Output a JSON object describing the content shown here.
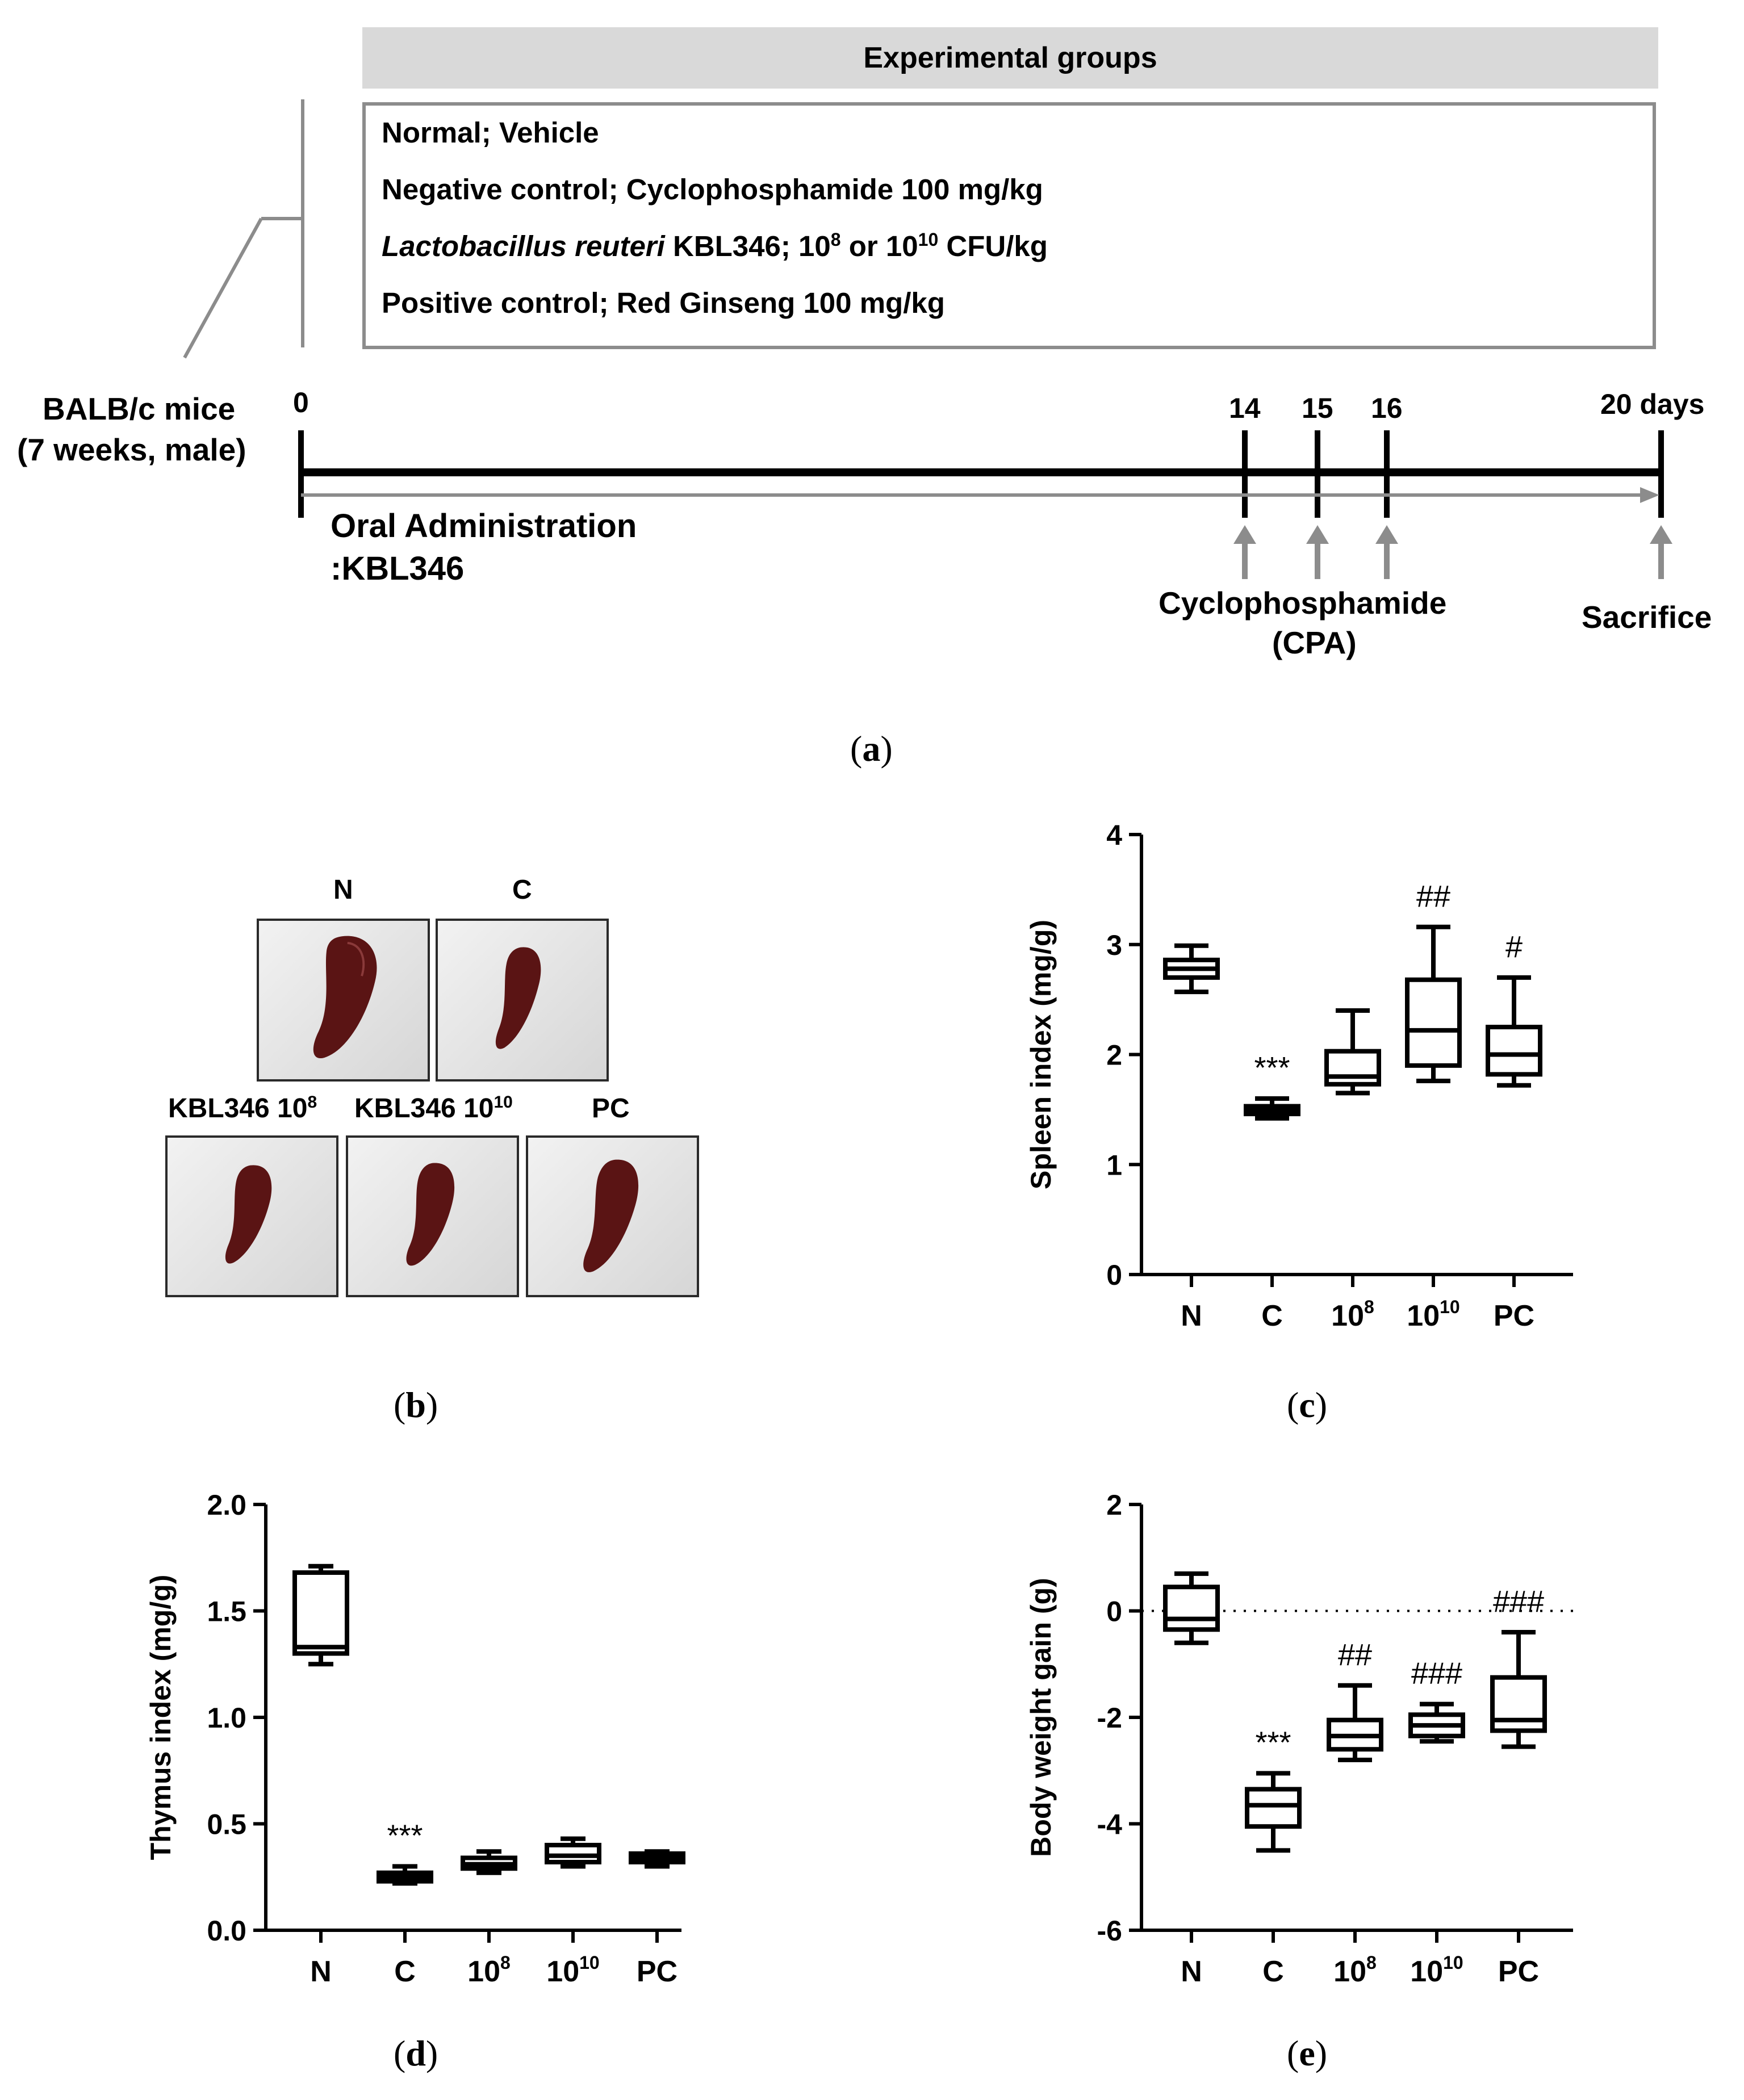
{
  "panel_a": {
    "header": "Experimental groups",
    "groups": [
      {
        "text": "Normal; Vehicle"
      },
      {
        "text": "Negative control; Cyclophosphamide 100 mg/kg"
      },
      {
        "italic": "Lactobacillus reuteri",
        "text": " KBL346; 10",
        "sup1": "8",
        "text2": " or 10",
        "sup2": "10",
        "text3": " CFU/kg"
      },
      {
        "text": "Positive control; Red Ginseng 100 mg/kg"
      }
    ],
    "mice_line1": "BALB/c mice",
    "mice_line2": "(7 weeks, male)",
    "day0": "0",
    "day14": "14",
    "day15": "15",
    "day16": "16",
    "day20": "20 days",
    "oral_line1": "Oral Administration",
    "oral_line2": ":KBL346",
    "cpa_line1": "Cyclophosphamide",
    "cpa_line2": "(CPA)",
    "sacrifice": "Sacrifice",
    "label": "a"
  },
  "panel_b": {
    "label": "b",
    "photos": [
      {
        "name": "N",
        "base": "",
        "sup": ""
      },
      {
        "name": "C",
        "base": "",
        "sup": ""
      },
      {
        "name": "",
        "base": "KBL346 10",
        "sup": "8"
      },
      {
        "name": "",
        "base": "KBL346 10",
        "sup": "10"
      },
      {
        "name": "PC",
        "base": "",
        "sup": ""
      }
    ]
  },
  "colors": {
    "axis": "#000000",
    "box_fill": "#ffffff",
    "gray_line": "#8c8c8c"
  },
  "chart_data": [
    {
      "id": "c",
      "type": "box",
      "ylabel": "Spleen index (mg/g)",
      "ylim": [
        0,
        4
      ],
      "yticks": [
        0,
        1,
        2,
        3,
        4
      ],
      "ytick_labels": [
        "0",
        "1",
        "2",
        "3",
        "4"
      ],
      "categories": [
        {
          "base": "N",
          "sup": ""
        },
        {
          "base": "C",
          "sup": ""
        },
        {
          "base": "10",
          "sup": "8"
        },
        {
          "base": "10",
          "sup": "10"
        },
        {
          "base": "PC",
          "sup": ""
        }
      ],
      "boxes": [
        {
          "min": 2.57,
          "q1": 2.7,
          "median": 2.78,
          "q3": 2.86,
          "max": 2.99
        },
        {
          "min": 1.42,
          "q1": 1.46,
          "median": 1.49,
          "q3": 1.53,
          "max": 1.6
        },
        {
          "min": 1.65,
          "q1": 1.73,
          "median": 1.8,
          "q3": 2.03,
          "max": 2.4
        },
        {
          "min": 1.76,
          "q1": 1.9,
          "median": 2.22,
          "q3": 2.68,
          "max": 3.16
        },
        {
          "min": 1.72,
          "q1": 1.82,
          "median": 2.0,
          "q3": 2.25,
          "max": 2.7
        }
      ],
      "annotations": [
        "",
        "***",
        "",
        "##",
        "#"
      ],
      "label": "c"
    },
    {
      "id": "d",
      "type": "box",
      "ylabel": "Thymus index (mg/g)",
      "ylim": [
        0,
        2
      ],
      "yticks": [
        0,
        0.5,
        1,
        1.5,
        2
      ],
      "ytick_labels": [
        "0.0",
        "0.5",
        "1.0",
        "1.5",
        "2.0"
      ],
      "categories": [
        {
          "base": "N",
          "sup": ""
        },
        {
          "base": "C",
          "sup": ""
        },
        {
          "base": "10",
          "sup": "8"
        },
        {
          "base": "10",
          "sup": "10"
        },
        {
          "base": "PC",
          "sup": ""
        }
      ],
      "boxes": [
        {
          "min": 1.25,
          "q1": 1.3,
          "median": 1.33,
          "q3": 1.68,
          "max": 1.71
        },
        {
          "min": 0.22,
          "q1": 0.23,
          "median": 0.25,
          "q3": 0.27,
          "max": 0.3
        },
        {
          "min": 0.27,
          "q1": 0.29,
          "median": 0.31,
          "q3": 0.34,
          "max": 0.37
        },
        {
          "min": 0.3,
          "q1": 0.32,
          "median": 0.35,
          "q3": 0.4,
          "max": 0.43
        },
        {
          "min": 0.3,
          "q1": 0.32,
          "median": 0.34,
          "q3": 0.36,
          "max": 0.37
        }
      ],
      "annotations": [
        "",
        "***",
        "",
        "",
        ""
      ],
      "label": "d"
    },
    {
      "id": "e",
      "type": "box",
      "ylabel": "Body weight gain (g)",
      "ylim": [
        -6,
        2
      ],
      "yticks": [
        -6,
        -4,
        -2,
        0,
        2
      ],
      "ytick_labels": [
        "-6",
        "-4",
        "-2",
        "0",
        "2"
      ],
      "reference_line": 0,
      "categories": [
        {
          "base": "N",
          "sup": ""
        },
        {
          "base": "C",
          "sup": ""
        },
        {
          "base": "10",
          "sup": "8"
        },
        {
          "base": "10",
          "sup": "10"
        },
        {
          "base": "PC",
          "sup": ""
        }
      ],
      "boxes": [
        {
          "min": -0.6,
          "q1": -0.35,
          "median": -0.15,
          "q3": 0.45,
          "max": 0.7
        },
        {
          "min": -4.5,
          "q1": -4.05,
          "median": -3.65,
          "q3": -3.35,
          "max": -3.05
        },
        {
          "min": -2.8,
          "q1": -2.6,
          "median": -2.35,
          "q3": -2.05,
          "max": -1.4
        },
        {
          "min": -2.45,
          "q1": -2.35,
          "median": -2.15,
          "q3": -1.95,
          "max": -1.75
        },
        {
          "min": -2.55,
          "q1": -2.25,
          "median": -2.05,
          "q3": -1.25,
          "max": -0.4
        }
      ],
      "annotations": [
        "",
        "***",
        "##",
        "###",
        "###"
      ],
      "label": "e"
    }
  ]
}
